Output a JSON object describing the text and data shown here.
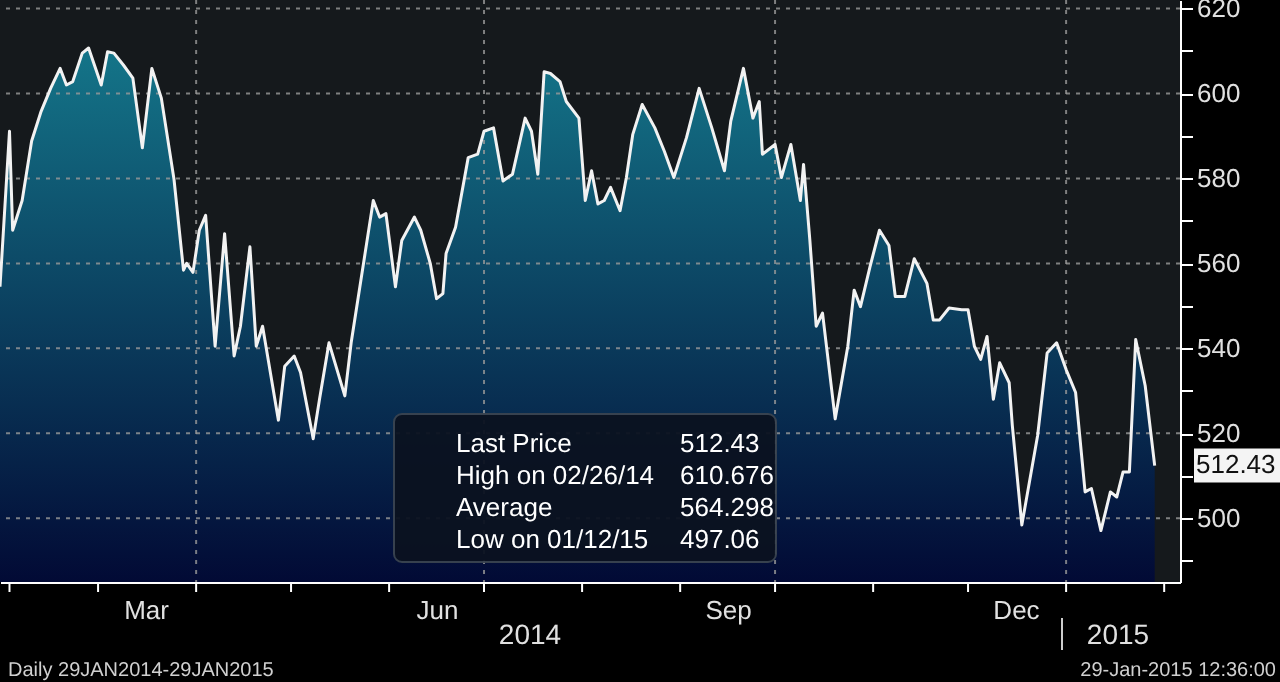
{
  "chart_data": {
    "type": "area",
    "x": [
      "2014-01-29",
      "2014-02-01",
      "2014-02-02",
      "2014-02-05",
      "2014-02-08",
      "2014-02-11",
      "2014-02-14",
      "2014-02-17",
      "2014-02-19",
      "2014-02-21",
      "2014-02-24",
      "2014-02-26",
      "2014-03-02",
      "2014-03-04",
      "2014-03-06",
      "2014-03-09",
      "2014-03-12",
      "2014-03-15",
      "2014-03-18",
      "2014-03-21",
      "2014-03-25",
      "2014-03-28",
      "2014-03-29",
      "2014-03-31",
      "2014-04-02",
      "2014-04-04",
      "2014-04-07",
      "2014-04-10",
      "2014-04-13",
      "2014-04-15",
      "2014-04-18",
      "2014-04-20",
      "2014-04-22",
      "2014-04-27",
      "2014-04-29",
      "2014-05-02",
      "2014-05-04",
      "2014-05-08",
      "2014-05-10",
      "2014-05-13",
      "2014-05-18",
      "2014-05-20",
      "2014-05-27",
      "2014-05-29",
      "2014-05-31",
      "2014-06-03",
      "2014-06-05",
      "2014-06-09",
      "2014-06-11",
      "2014-06-14",
      "2014-06-16",
      "2014-06-18",
      "2014-06-19",
      "2014-06-22",
      "2014-06-26",
      "2014-06-29",
      "2014-07-01",
      "2014-07-04",
      "2014-07-07",
      "2014-07-10",
      "2014-07-14",
      "2014-07-16",
      "2014-07-18",
      "2014-07-20",
      "2014-07-22",
      "2014-07-25",
      "2014-07-27",
      "2014-07-31",
      "2014-08-02",
      "2014-08-04",
      "2014-08-06",
      "2014-08-08",
      "2014-08-10",
      "2014-08-13",
      "2014-08-15",
      "2014-08-17",
      "2014-08-20",
      "2014-08-24",
      "2014-08-27",
      "2014-08-30",
      "2014-09-03",
      "2014-09-07",
      "2014-09-11",
      "2014-09-15",
      "2014-09-17",
      "2014-09-21",
      "2014-09-24",
      "2014-09-26",
      "2014-09-27",
      "2014-10-01",
      "2014-10-03",
      "2014-10-06",
      "2014-10-09",
      "2014-10-10",
      "2014-10-12",
      "2014-10-14",
      "2014-10-16",
      "2014-10-20",
      "2014-10-24",
      "2014-10-26",
      "2014-10-28",
      "2014-10-31",
      "2014-11-03",
      "2014-11-06",
      "2014-11-08",
      "2014-11-11",
      "2014-11-14",
      "2014-11-18",
      "2014-11-20",
      "2014-11-22",
      "2014-11-25",
      "2014-11-29",
      "2014-12-01",
      "2014-12-03",
      "2014-12-05",
      "2014-12-07",
      "2014-12-09",
      "2014-12-11",
      "2014-12-14",
      "2014-12-15",
      "2014-12-18",
      "2014-12-23",
      "2014-12-26",
      "2014-12-29",
      "2015-01-01",
      "2015-01-04",
      "2015-01-07",
      "2015-01-09",
      "2015-01-12",
      "2015-01-15",
      "2015-01-17",
      "2015-01-19",
      "2015-01-21",
      "2015-01-23",
      "2015-01-26",
      "2015-01-29"
    ],
    "series": [
      {
        "color": "#147589",
        "values": [
          554.5,
          591.1,
          567.8,
          574.8,
          588.8,
          595.8,
          601.2,
          605.9,
          602.0,
          602.8,
          609.5,
          610.7,
          602.0,
          609.8,
          609.5,
          606.7,
          603.6,
          587.2,
          605.9,
          598.9,
          579.8,
          558.4,
          560.0,
          557.9,
          567.8,
          571.3,
          540.5,
          567.0,
          538.2,
          545.2,
          563.9,
          540.5,
          545.2,
          523.1,
          535.8,
          538.2,
          534.3,
          518.7,
          528.0,
          541.3,
          528.8,
          541.3,
          574.8,
          570.9,
          571.7,
          554.5,
          565.4,
          570.9,
          567.8,
          560.0,
          551.7,
          552.9,
          562.3,
          568.5,
          584.9,
          585.7,
          591.1,
          591.9,
          579.4,
          581.0,
          594.2,
          591.1,
          581.0,
          605.1,
          604.7,
          602.8,
          598.1,
          594.2,
          574.8,
          581.8,
          574.0,
          574.8,
          577.9,
          572.4,
          580.2,
          590.3,
          597.4,
          591.9,
          586.4,
          580.2,
          589.6,
          601.2,
          591.9,
          581.8,
          593.5,
          605.9,
          594.2,
          598.1,
          585.7,
          588.0,
          580.2,
          588.0,
          574.8,
          583.3,
          565.4,
          545.2,
          548.3,
          523.4,
          540.5,
          553.7,
          549.8,
          559.2,
          567.8,
          564.2,
          552.2,
          552.2,
          561.1,
          555.3,
          546.7,
          546.7,
          549.5,
          549.1,
          549.1,
          540.5,
          537.4,
          542.8,
          528.0,
          536.6,
          531.9,
          521.8,
          498.4,
          519.5,
          538.9,
          541.3,
          535.0,
          529.6,
          506.2,
          507.0,
          497.1,
          506.2,
          505.0,
          510.9,
          510.9,
          542.1,
          531.2,
          512.4
        ]
      }
    ],
    "xlim": [
      "2014-01-29",
      "2015-02-06"
    ],
    "xticks": [
      {
        "value": "2014-02-01",
        "label": null
      },
      {
        "value": "2014-03-01",
        "label": null
      },
      {
        "value": "2014-03-16",
        "label": "Mar"
      },
      {
        "value": "2014-04-01",
        "label": null
      },
      {
        "value": "2014-05-01",
        "label": null
      },
      {
        "value": "2014-06-01",
        "label": null
      },
      {
        "value": "2014-06-16",
        "label": "Jun"
      },
      {
        "value": "2014-07-01",
        "label": null
      },
      {
        "value": "2014-08-01",
        "label": null
      },
      {
        "value": "2014-09-01",
        "label": null
      },
      {
        "value": "2014-09-16",
        "label": "Sep"
      },
      {
        "value": "2014-10-01",
        "label": null
      },
      {
        "value": "2014-11-01",
        "label": null
      },
      {
        "value": "2014-12-01",
        "label": null
      },
      {
        "value": "2014-12-16",
        "label": "Dec"
      },
      {
        "value": "2015-01-01",
        "label": null
      },
      {
        "value": "2015-02-01",
        "label": null
      }
    ],
    "ylim": [
      485,
      622
    ],
    "yticks": [
      {
        "value": 490,
        "label": null
      },
      500,
      {
        "value": 510,
        "label": null
      },
      520,
      {
        "value": 530,
        "label": null
      },
      540,
      {
        "value": 550,
        "label": null
      },
      560,
      {
        "value": 570,
        "label": null
      },
      580,
      {
        "value": 590,
        "label": null
      },
      600,
      {
        "value": 610,
        "label": null
      },
      620
    ],
    "grid": true,
    "line_style": "solid",
    "annotations": [
      "Last Price",
      "512.43",
      "High on 02/26/14",
      "610.676",
      "Average",
      "564.298",
      "Low on 01/12/15",
      "497.06",
      "Daily 29JAN2014-29JAN2015",
      "29-Jan-2015 12:36:00",
      "2014",
      "2015",
      {
        "text": "512.43",
        "x": "2015-01-29",
        "y": 512.43
      }
    ]
  }
}
